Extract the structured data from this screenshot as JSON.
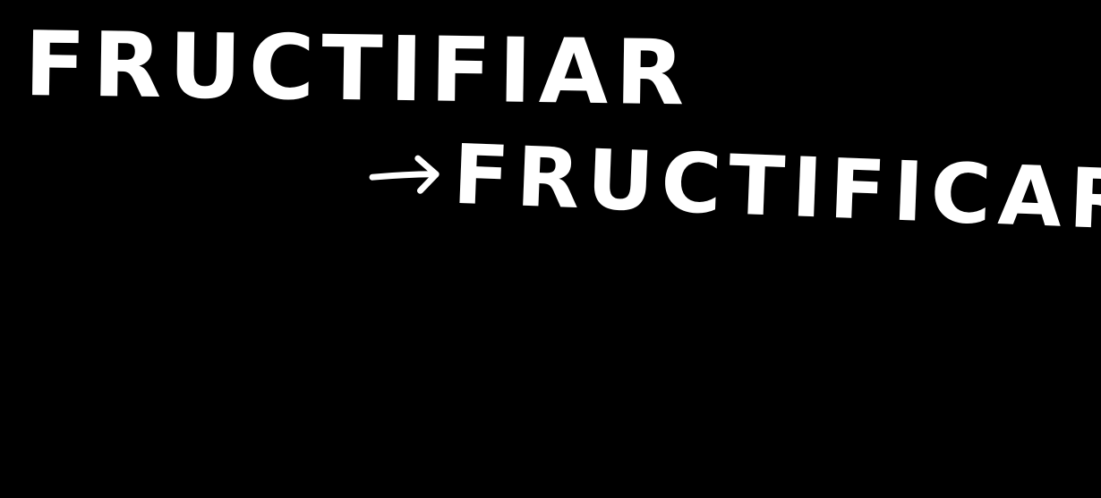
{
  "note": {
    "line_1": "FRUCTIFIAR",
    "line_2": "FRUCTIFICAR",
    "arrow_icon": "right-arrow-icon"
  },
  "colors": {
    "background": "#000000",
    "ink": "#ffffff"
  }
}
